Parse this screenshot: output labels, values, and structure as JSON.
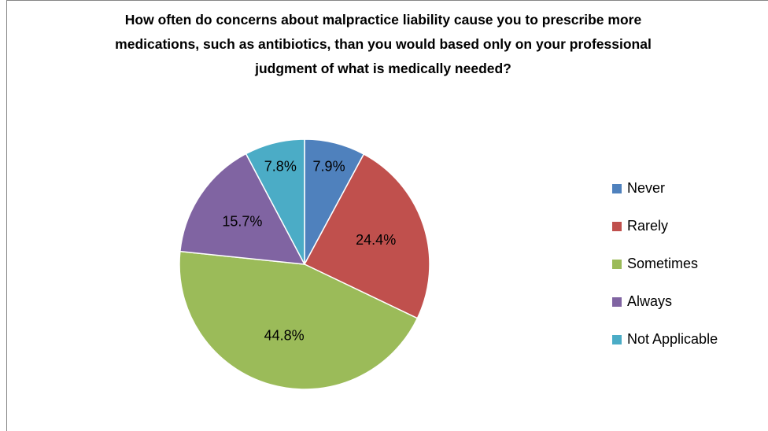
{
  "chart_data": {
    "type": "pie",
    "title": "How often do concerns about malpractice liability cause you to prescribe more medications, such as antibiotics, than you would based only on your professional judgment of what is medically needed?",
    "categories": [
      "Never",
      "Rarely",
      "Sometimes",
      "Always",
      "Not Applicable"
    ],
    "values": [
      7.9,
      24.4,
      44.8,
      15.7,
      7.8
    ],
    "value_labels": [
      "7.9%",
      "24.4%",
      "44.8%",
      "15.7%",
      "7.8%"
    ],
    "colors": [
      "#4f81bd",
      "#c0504d",
      "#9bbb59",
      "#8064a2",
      "#4bacc6"
    ],
    "legend": "right"
  }
}
